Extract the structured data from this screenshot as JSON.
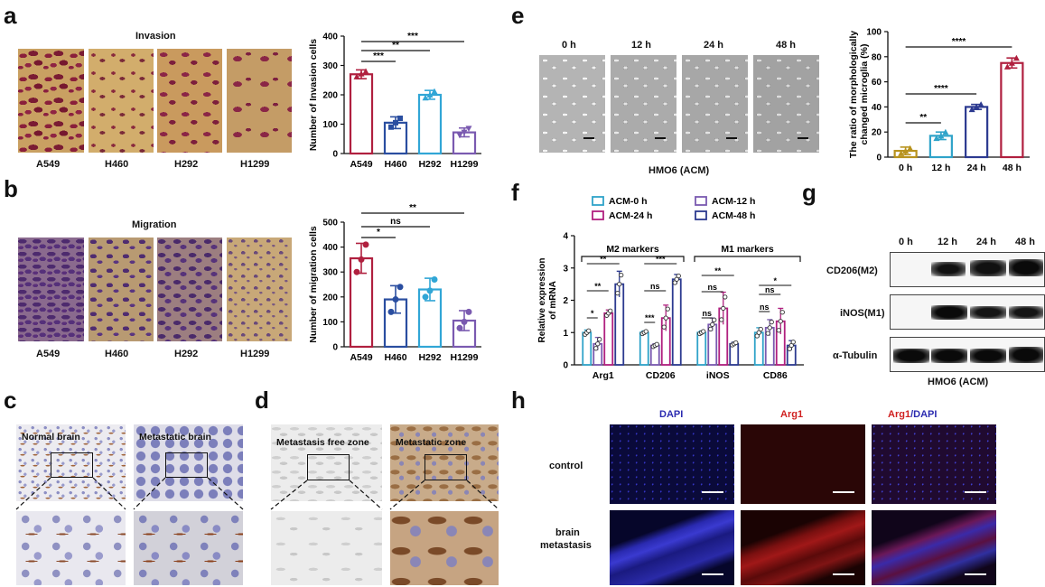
{
  "panels": {
    "a": {
      "letter": "a",
      "title": "Invasion",
      "cells": [
        "A549",
        "H460",
        "H292",
        "H1299"
      ]
    },
    "b": {
      "letter": "b",
      "title": "Migration",
      "cells": [
        "A549",
        "H460",
        "H292",
        "H1299"
      ]
    },
    "c": {
      "letter": "c",
      "labels": [
        "Normal brain",
        "Metastatic brain"
      ]
    },
    "d": {
      "letter": "d",
      "labels": [
        "Metastasis free zone",
        "Metastatic  zone"
      ]
    },
    "e": {
      "letter": "e",
      "times": [
        "0 h",
        "12 h",
        "24 h",
        "48 h"
      ],
      "caption": "HMO6 (ACM)"
    },
    "f": {
      "letter": "f"
    },
    "g": {
      "letter": "g",
      "times": [
        "0 h",
        "12 h",
        "24 h",
        "48 h"
      ],
      "bands": [
        "CD206(M2)",
        "iNOS(M1)",
        "α-Tubulin"
      ],
      "caption": "HMO6 (ACM)"
    },
    "h": {
      "letter": "h",
      "cols": [
        "DAPI",
        "Arg1",
        "Arg1",
        "/DAPI"
      ],
      "rows": [
        "control",
        "brain",
        "metastasis"
      ]
    }
  },
  "chart_data": [
    {
      "id": "a-invasion",
      "type": "bar",
      "categories": [
        "A549",
        "H460",
        "H292",
        "H1299"
      ],
      "values": [
        270,
        105,
        200,
        72
      ],
      "errors": [
        15,
        20,
        15,
        15
      ],
      "points": [
        [
          262,
          272,
          280
        ],
        [
          90,
          105,
          120
        ],
        [
          190,
          200,
          212
        ],
        [
          62,
          72,
          85
        ]
      ],
      "colors": [
        "#b0203f",
        "#2a4ea0",
        "#31a6d6",
        "#7a5ab0"
      ],
      "ylabel": "Number of Invasion cells",
      "ylim": [
        0,
        400
      ],
      "yticks": [
        0,
        100,
        200,
        300,
        400
      ],
      "sig": [
        {
          "from": 0,
          "to": 1,
          "label": "***"
        },
        {
          "from": 0,
          "to": 2,
          "label": "**"
        },
        {
          "from": 0,
          "to": 3,
          "label": "***"
        }
      ]
    },
    {
      "id": "b-migration",
      "type": "bar",
      "categories": [
        "A549",
        "H460",
        "H292",
        "H1299"
      ],
      "values": [
        355,
        190,
        230,
        105
      ],
      "errors": [
        60,
        55,
        45,
        40
      ],
      "points": [
        [
          300,
          350,
          410
        ],
        [
          140,
          190,
          240
        ],
        [
          200,
          225,
          270
        ],
        [
          75,
          100,
          140
        ]
      ],
      "colors": [
        "#b0203f",
        "#2a4ea0",
        "#31a6d6",
        "#7a5ab0"
      ],
      "ylabel": "Number of migration cells",
      "ylim": [
        0,
        500
      ],
      "yticks": [
        0,
        100,
        200,
        300,
        400,
        500
      ],
      "sig": [
        {
          "from": 0,
          "to": 1,
          "label": "*"
        },
        {
          "from": 0,
          "to": 2,
          "label": "ns"
        },
        {
          "from": 0,
          "to": 3,
          "label": "**"
        }
      ]
    },
    {
      "id": "e-ratio",
      "type": "bar",
      "categories": [
        "0 h",
        "12 h",
        "24 h",
        "48 h"
      ],
      "values": [
        5,
        17,
        40,
        75
      ],
      "errors": [
        3,
        3,
        2,
        4
      ],
      "points": [
        [
          3,
          5,
          7
        ],
        [
          15,
          17,
          20
        ],
        [
          38,
          40,
          42
        ],
        [
          72,
          75,
          79
        ]
      ],
      "colors": [
        "#b8931e",
        "#2fa3c9",
        "#2c3a90",
        "#b0203f"
      ],
      "ylabel": "The ratio of morphologically changed microglia (%)",
      "ylim": [
        0,
        100
      ],
      "yticks": [
        0,
        20,
        40,
        60,
        80,
        100
      ],
      "sig": [
        {
          "from": 0,
          "to": 1,
          "label": "**"
        },
        {
          "from": 0,
          "to": 2,
          "label": "****"
        },
        {
          "from": 0,
          "to": 3,
          "label": "****"
        }
      ]
    },
    {
      "id": "f-mrna",
      "type": "bar",
      "categories": [
        "Arg1",
        "CD206",
        "iNOS",
        "CD86"
      ],
      "series": [
        {
          "name": "ACM-0 h",
          "color": "#2fa3c9",
          "values": [
            1.0,
            1.0,
            1.0,
            1.0
          ],
          "errors": [
            0.08,
            0.05,
            0.05,
            0.15
          ]
        },
        {
          "name": "ACM-12 h",
          "color": "#7a5ab0",
          "values": [
            0.65,
            0.6,
            1.25,
            1.15
          ],
          "errors": [
            0.2,
            0.05,
            0.2,
            0.25
          ]
        },
        {
          "name": "ACM-24 h",
          "color": "#b0207f",
          "values": [
            1.6,
            1.45,
            1.75,
            1.35
          ],
          "errors": [
            0.1,
            0.4,
            0.5,
            0.4
          ]
        },
        {
          "name": "ACM-48 h",
          "color": "#2c3a90",
          "values": [
            2.5,
            2.65,
            0.65,
            0.6
          ],
          "errors": [
            0.4,
            0.15,
            0.05,
            0.15
          ]
        }
      ],
      "ylabel": "Relative expression of mRNA",
      "ylim": [
        0,
        4
      ],
      "yticks": [
        0,
        1,
        2,
        3,
        4
      ],
      "groups": [
        "M2 markers",
        "M1 markers"
      ],
      "sig": [
        {
          "cat": 0,
          "from": 0,
          "to": 1,
          "label": "*"
        },
        {
          "cat": 0,
          "from": 0,
          "to": 2,
          "label": "**"
        },
        {
          "cat": 0,
          "from": 0,
          "to": 3,
          "label": "**"
        },
        {
          "cat": 1,
          "from": 0,
          "to": 1,
          "label": "***"
        },
        {
          "cat": 1,
          "from": 0,
          "to": 2,
          "label": "ns"
        },
        {
          "cat": 1,
          "from": 0,
          "to": 3,
          "label": "***"
        },
        {
          "cat": 2,
          "from": 0,
          "to": 1,
          "label": "ns"
        },
        {
          "cat": 2,
          "from": 0,
          "to": 2,
          "label": "ns"
        },
        {
          "cat": 2,
          "from": 0,
          "to": 3,
          "label": "**"
        },
        {
          "cat": 3,
          "from": 0,
          "to": 1,
          "label": "ns"
        },
        {
          "cat": 3,
          "from": 0,
          "to": 2,
          "label": "ns"
        },
        {
          "cat": 3,
          "from": 0,
          "to": 3,
          "label": "*"
        }
      ]
    }
  ]
}
